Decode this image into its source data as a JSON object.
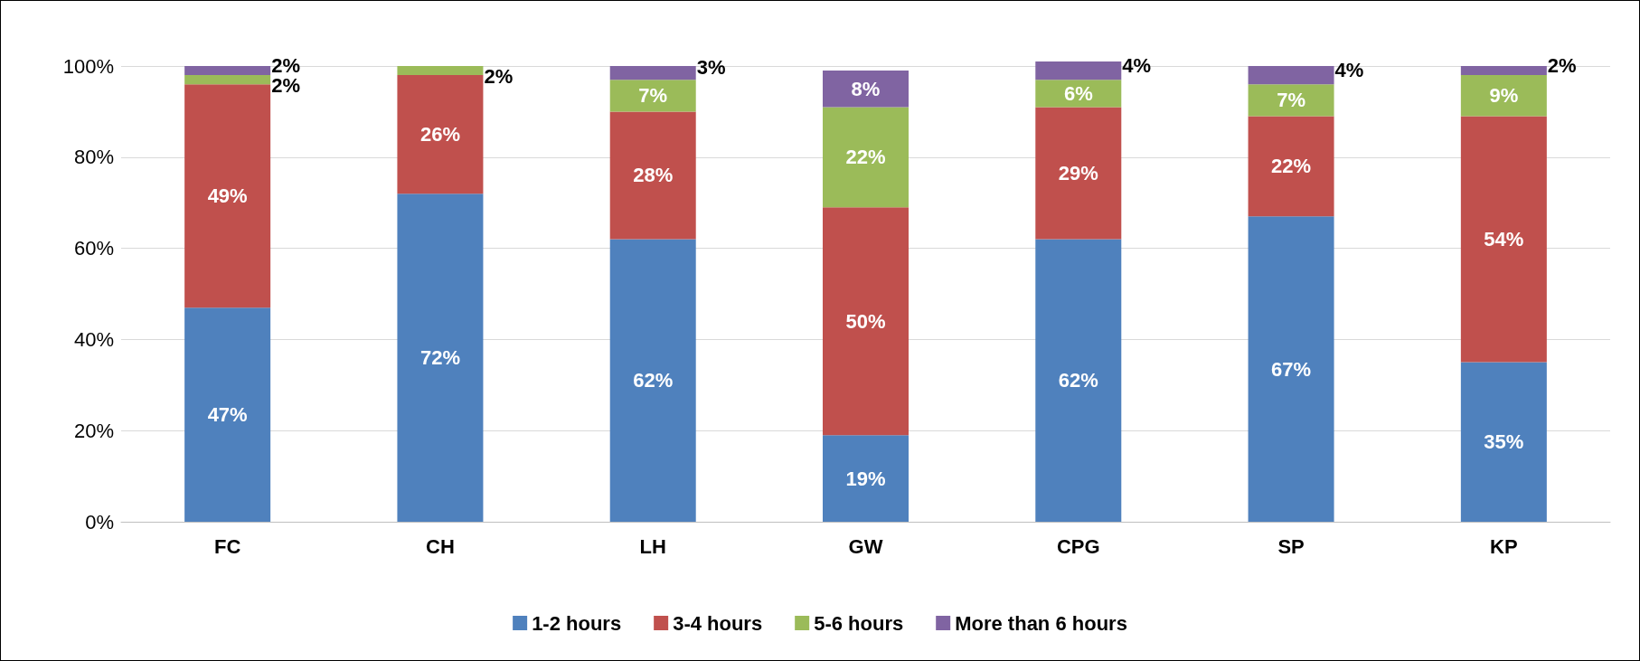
{
  "chart_data": {
    "type": "bar",
    "stacked": true,
    "categories": [
      "FC",
      "CH",
      "LH",
      "GW",
      "CPG",
      "SP",
      "KP"
    ],
    "series": [
      {
        "name": "1-2 hours",
        "color": "#4f81bd",
        "values": [
          47,
          72,
          62,
          19,
          62,
          67,
          35
        ],
        "value_labels": [
          "47%",
          "72%",
          "62%",
          "19%",
          "62%",
          "67%",
          "35%"
        ]
      },
      {
        "name": "3-4 hours",
        "color": "#c0504d",
        "values": [
          49,
          26,
          28,
          50,
          29,
          22,
          54
        ],
        "value_labels": [
          "49%",
          "26%",
          "28%",
          "50%",
          "29%",
          "22%",
          "54%"
        ]
      },
      {
        "name": "5-6 hours",
        "color": "#9bbb59",
        "values": [
          2,
          2,
          7,
          22,
          6,
          7,
          9
        ],
        "value_labels": [
          "2%",
          "2%",
          "7%",
          "22%",
          "6%",
          "7%",
          "9%"
        ]
      },
      {
        "name": "More than 6 hours",
        "color": "#8064a2",
        "values": [
          2,
          null,
          3,
          8,
          4,
          4,
          2
        ],
        "value_labels": [
          "2%",
          null,
          "3%",
          "8%",
          "4%",
          "4%",
          "2%"
        ]
      }
    ],
    "ylim": [
      0,
      101
    ],
    "yticks": [
      {
        "value": 0,
        "label": "0%"
      },
      {
        "value": 20,
        "label": "20%"
      },
      {
        "value": 40,
        "label": "40%"
      },
      {
        "value": 60,
        "label": "60%"
      },
      {
        "value": 80,
        "label": "80%"
      },
      {
        "value": 100,
        "label": "100%"
      }
    ],
    "grid": "y",
    "legend": "bottom"
  }
}
